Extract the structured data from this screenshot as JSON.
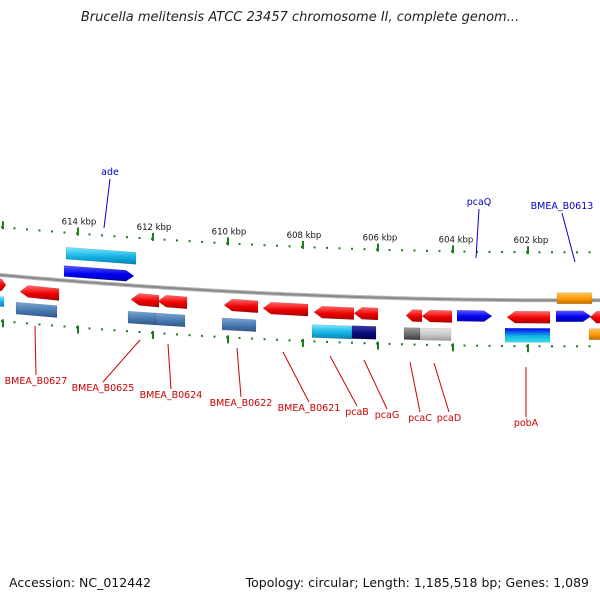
{
  "title": "Brucella melitensis ATCC 23457 chromosome II, complete genom...",
  "footer": {
    "accession": "Accession: NC_012442",
    "topology": "Topology: circular; Length: 1,185,518 bp; Genes: 1,089"
  },
  "scale_labels": [
    "614 kbp",
    "612 kbp",
    "610 kbp",
    "608 kbp",
    "606 kbp",
    "604 kbp",
    "602 kbp"
  ],
  "colors": {
    "backbone": "#8a8a8a",
    "ticks": "#1e7d1e",
    "label_red": "#cc0000",
    "label_blue": "#0000cc"
  },
  "top_labels": [
    {
      "text": "ade",
      "color": "#0000cc"
    },
    {
      "text": "pcaQ",
      "color": "#0000cc"
    },
    {
      "text": "BMEA_B0613",
      "color": "#0000cc"
    }
  ],
  "bottom_labels": [
    {
      "text": "BMEA_B0627",
      "color": "#cc0000"
    },
    {
      "text": "BMEA_B0625",
      "color": "#cc0000"
    },
    {
      "text": "BMEA_B0624",
      "color": "#cc0000"
    },
    {
      "text": "BMEA_B0622",
      "color": "#cc0000"
    },
    {
      "text": "BMEA_B0621",
      "color": "#cc0000"
    },
    {
      "text": "pcaB",
      "color": "#cc0000"
    },
    {
      "text": "pcaG",
      "color": "#cc0000"
    },
    {
      "text": "pcaC",
      "color": "#cc0000"
    },
    {
      "text": "pcaD",
      "color": "#cc0000"
    },
    {
      "text": "pobA",
      "color": "#cc0000"
    }
  ]
}
